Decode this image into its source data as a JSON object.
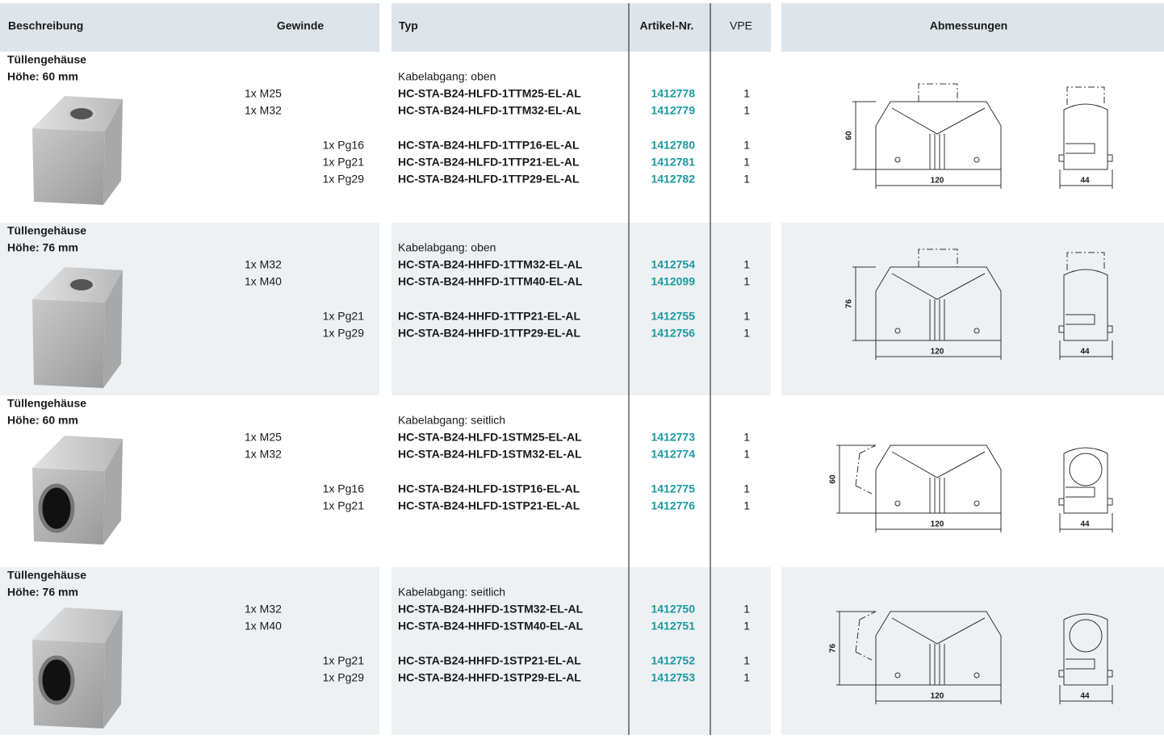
{
  "header": {
    "description": "Beschreibung",
    "thread": "Gewinde",
    "type": "Typ",
    "article": "Artikel-Nr.",
    "vpe": "VPE",
    "dimensions": "Abmessungen"
  },
  "sections": [
    {
      "title": "Tüllengehäuse",
      "height": "Höhe: 60 mm",
      "exit": "Kabelabgang: oben",
      "metric": [
        {
          "thread": "1x M25",
          "type": "HC-STA-B24-HLFD-1TTM25-EL-AL",
          "article": "1412778",
          "vpe": "1"
        },
        {
          "thread": "1x M32",
          "type": "HC-STA-B24-HLFD-1TTM32-EL-AL",
          "article": "1412779",
          "vpe": "1"
        }
      ],
      "pg": [
        {
          "thread": "1x Pg16",
          "type": "HC-STA-B24-HLFD-1TTP16-EL-AL",
          "article": "1412780",
          "vpe": "1"
        },
        {
          "thread": "1x Pg21",
          "type": "HC-STA-B24-HLFD-1TTP21-EL-AL",
          "article": "1412781",
          "vpe": "1"
        },
        {
          "thread": "1x Pg29",
          "type": "HC-STA-B24-HLFD-1TTP29-EL-AL",
          "article": "1412782",
          "vpe": "1"
        }
      ],
      "dims": {
        "h": "60",
        "w": "120",
        "d": "44"
      }
    },
    {
      "title": "Tüllengehäuse",
      "height": "Höhe: 76 mm",
      "exit": "Kabelabgang: oben",
      "metric": [
        {
          "thread": "1x M32",
          "type": "HC-STA-B24-HHFD-1TTM32-EL-AL",
          "article": "1412754",
          "vpe": "1"
        },
        {
          "thread": "1x M40",
          "type": "HC-STA-B24-HHFD-1TTM40-EL-AL",
          "article": "1412099",
          "vpe": "1"
        }
      ],
      "pg": [
        {
          "thread": "1x Pg21",
          "type": "HC-STA-B24-HHFD-1TTP21-EL-AL",
          "article": "1412755",
          "vpe": "1"
        },
        {
          "thread": "1x Pg29",
          "type": "HC-STA-B24-HHFD-1TTP29-EL-AL",
          "article": "1412756",
          "vpe": "1"
        }
      ],
      "dims": {
        "h": "76",
        "w": "120",
        "d": "44"
      }
    },
    {
      "title": "Tüllengehäuse",
      "height": "Höhe: 60 mm",
      "exit": "Kabelabgang: seitlich",
      "metric": [
        {
          "thread": "1x M25",
          "type": "HC-STA-B24-HLFD-1STM25-EL-AL",
          "article": "1412773",
          "vpe": "1"
        },
        {
          "thread": "1x M32",
          "type": "HC-STA-B24-HLFD-1STM32-EL-AL",
          "article": "1412774",
          "vpe": "1"
        }
      ],
      "pg": [
        {
          "thread": "1x Pg16",
          "type": "HC-STA-B24-HLFD-1STP16-EL-AL",
          "article": "1412775",
          "vpe": "1"
        },
        {
          "thread": "1x Pg21",
          "type": "HC-STA-B24-HLFD-1STP21-EL-AL",
          "article": "1412776",
          "vpe": "1"
        }
      ],
      "dims": {
        "h": "60",
        "w": "120",
        "d": "44"
      }
    },
    {
      "title": "Tüllengehäuse",
      "height": "Höhe: 76 mm",
      "exit": "Kabelabgang: seitlich",
      "metric": [
        {
          "thread": "1x M32",
          "type": "HC-STA-B24-HHFD-1STM32-EL-AL",
          "article": "1412750",
          "vpe": "1"
        },
        {
          "thread": "1x M40",
          "type": "HC-STA-B24-HHFD-1STM40-EL-AL",
          "article": "1412751",
          "vpe": "1"
        }
      ],
      "pg": [
        {
          "thread": "1x Pg21",
          "type": "HC-STA-B24-HHFD-1STP21-EL-AL",
          "article": "1412752",
          "vpe": "1"
        },
        {
          "thread": "1x Pg29",
          "type": "HC-STA-B24-HHFD-1STP29-EL-AL",
          "article": "1412753",
          "vpe": "1"
        }
      ],
      "dims": {
        "h": "76",
        "w": "120",
        "d": "44"
      }
    }
  ]
}
